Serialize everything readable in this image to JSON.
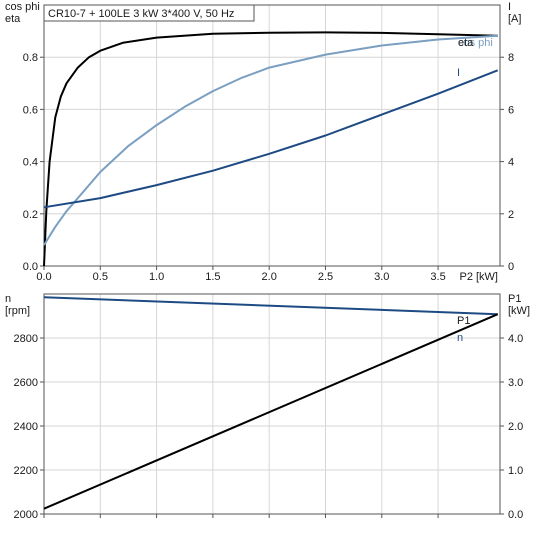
{
  "chart_data": [
    {
      "type": "line",
      "title": "CR10-7 + 100LE   3 kW   3*400 V, 50 Hz",
      "left_axis": {
        "label_line1": "cos phi",
        "label_line2": "eta",
        "ylim": [
          0,
          1.0
        ],
        "ticks": [
          0.0,
          0.2,
          0.4,
          0.6,
          0.8
        ]
      },
      "right_axis": {
        "label_line1": "I",
        "label_line2": "[A]",
        "ylim": [
          0,
          10.0
        ],
        "ticks": [
          0,
          2,
          4,
          6,
          8
        ]
      },
      "x_axis": {
        "label": "P2 [kW]",
        "xlim": [
          0,
          4.05
        ],
        "ticks": [
          0.0,
          0.5,
          1.0,
          1.5,
          2.0,
          2.5,
          3.0,
          3.5
        ]
      },
      "grid": true,
      "series": [
        {
          "name": "eta",
          "axis": "left",
          "color": "#000000",
          "x": [
            0.0,
            0.02,
            0.05,
            0.1,
            0.15,
            0.2,
            0.3,
            0.4,
            0.5,
            0.7,
            1.0,
            1.5,
            2.0,
            2.5,
            3.0,
            3.5,
            4.03
          ],
          "y": [
            0.0,
            0.21,
            0.4,
            0.57,
            0.65,
            0.7,
            0.76,
            0.8,
            0.825,
            0.855,
            0.875,
            0.89,
            0.894,
            0.895,
            0.893,
            0.888,
            0.882
          ]
        },
        {
          "name": "cos phi",
          "axis": "left",
          "color": "#7a9fc0",
          "x": [
            0.0,
            0.1,
            0.2,
            0.3,
            0.5,
            0.75,
            1.0,
            1.25,
            1.5,
            1.75,
            2.0,
            2.5,
            3.0,
            3.5,
            4.03
          ],
          "y": [
            0.08,
            0.15,
            0.21,
            0.26,
            0.36,
            0.46,
            0.54,
            0.61,
            0.67,
            0.72,
            0.76,
            0.81,
            0.845,
            0.868,
            0.882
          ]
        },
        {
          "name": "I",
          "axis": "right",
          "color": "#1e4a84",
          "x": [
            0.0,
            0.5,
            1.0,
            1.5,
            2.0,
            2.5,
            3.0,
            3.5,
            4.03
          ],
          "y": [
            2.25,
            2.6,
            3.1,
            3.65,
            4.3,
            5.0,
            5.8,
            6.6,
            7.5
          ]
        }
      ]
    },
    {
      "type": "line",
      "left_axis": {
        "label_line1": "n",
        "label_line2": "[rpm]",
        "ylim": [
          2000,
          3000
        ],
        "ticks": [
          2000,
          2200,
          2400,
          2600,
          2800
        ]
      },
      "right_axis": {
        "label_line1": "P1",
        "label_line2": "[kW]",
        "ylim": [
          0,
          5.0
        ],
        "ticks": [
          0.0,
          1.0,
          2.0,
          3.0,
          4.0
        ]
      },
      "x_axis": {
        "label": "",
        "xlim": [
          0,
          4.05
        ],
        "ticks": [
          0.0,
          0.5,
          1.0,
          1.5,
          2.0,
          2.5,
          3.0,
          3.5
        ]
      },
      "grid": true,
      "series": [
        {
          "name": "n",
          "axis": "left",
          "color": "#1e4a84",
          "x": [
            0.0,
            4.03
          ],
          "y": [
            2985,
            2908
          ]
        },
        {
          "name": "P1",
          "axis": "right",
          "color": "#000000",
          "x": [
            0.0,
            4.03
          ],
          "y": [
            0.12,
            4.54
          ]
        }
      ]
    }
  ]
}
